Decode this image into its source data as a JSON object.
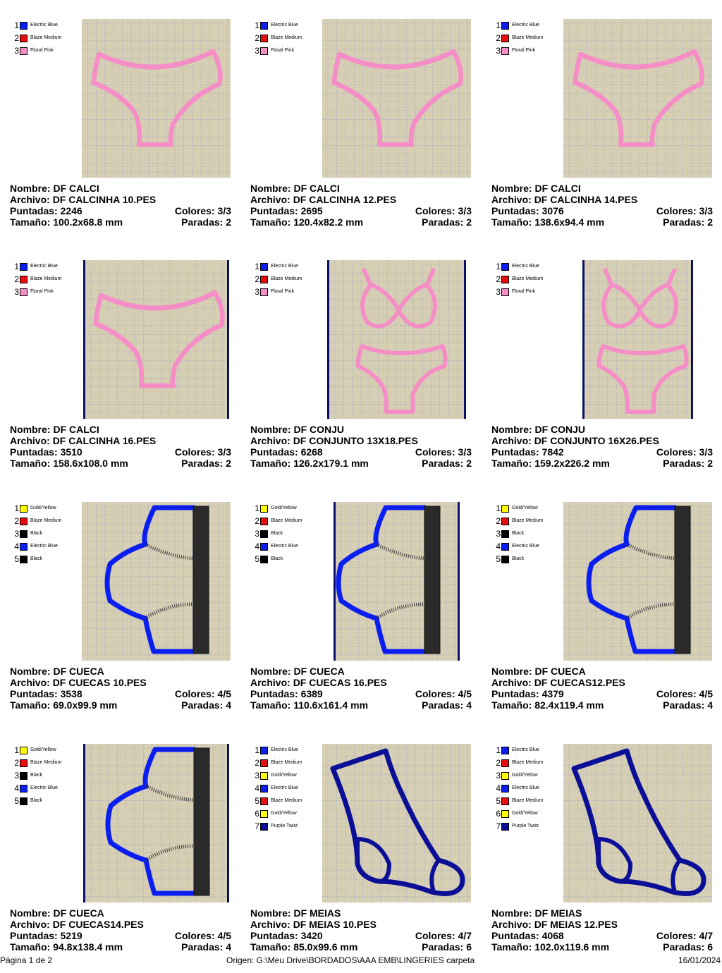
{
  "palette": {
    "Electric Blue": "#0a1ef0",
    "Blaze Medium": "#e50d0d",
    "Floral Pink": "#f58ec6",
    "Gold/Yellow": "#ffff00",
    "Black": "#000000",
    "Purple Twist": "#0a0f96"
  },
  "designs": [
    {
      "nombre_label": "Nombre:",
      "nombre": "DF CALCI",
      "archivo_label": "Archivo:",
      "archivo": "DF CALCINHA 10.PES",
      "puntadas_label": "Puntadas:",
      "puntadas": "2246",
      "colores_label": "Colores:",
      "colores": "3/3",
      "tamano_label": "Tamaño:",
      "tamano": "100.2x68.8 mm",
      "paradas_label": "Paradas:",
      "paradas": "2",
      "shape": "panty",
      "legend": [
        {
          "num": "1",
          "name": "Electric Blue",
          "color": "#0a1ef0"
        },
        {
          "num": "2",
          "name": "Blaze Medium",
          "color": "#e50d0d"
        },
        {
          "num": "3",
          "name": "Floral Pink",
          "color": "#f58ec6"
        }
      ]
    },
    {
      "nombre_label": "Nombre:",
      "nombre": "DF CALCI",
      "archivo_label": "Archivo:",
      "archivo": "DF CALCINHA 12.PES",
      "puntadas_label": "Puntadas:",
      "puntadas": "2695",
      "colores_label": "Colores:",
      "colores": "3/3",
      "tamano_label": "Tamaño:",
      "tamano": "120.4x82.2 mm",
      "paradas_label": "Paradas:",
      "paradas": "2",
      "shape": "panty",
      "legend": [
        {
          "num": "1",
          "name": "Electric Blue",
          "color": "#0a1ef0"
        },
        {
          "num": "2",
          "name": "Blaze Medium",
          "color": "#e50d0d"
        },
        {
          "num": "3",
          "name": "Floral Pink",
          "color": "#f58ec6"
        }
      ]
    },
    {
      "nombre_label": "Nombre:",
      "nombre": "DF CALCI",
      "archivo_label": "Archivo:",
      "archivo": "DF CALCINHA 14.PES",
      "puntadas_label": "Puntadas:",
      "puntadas": "3076",
      "colores_label": "Colores:",
      "colores": "3/3",
      "tamano_label": "Tamaño:",
      "tamano": "138.6x94.4 mm",
      "paradas_label": "Paradas:",
      "paradas": "2",
      "shape": "panty",
      "legend": [
        {
          "num": "1",
          "name": "Electric Blue",
          "color": "#0a1ef0"
        },
        {
          "num": "2",
          "name": "Blaze Medium",
          "color": "#e50d0d"
        },
        {
          "num": "3",
          "name": "Floral Pink",
          "color": "#f58ec6"
        }
      ]
    },
    {
      "nombre_label": "Nombre:",
      "nombre": "DF CALCI",
      "archivo_label": "Archivo:",
      "archivo": "DF CALCINHA 16.PES",
      "puntadas_label": "Puntadas:",
      "puntadas": "3510",
      "colores_label": "Colores:",
      "colores": "3/3",
      "tamano_label": "Tamaño:",
      "tamano": "158.6x108.0 mm",
      "paradas_label": "Paradas:",
      "paradas": "2",
      "shape": "panty",
      "legend": [
        {
          "num": "1",
          "name": "Electric Blue",
          "color": "#0a1ef0"
        },
        {
          "num": "2",
          "name": "Blaze Medium",
          "color": "#e50d0d"
        },
        {
          "num": "3",
          "name": "Floral Pink",
          "color": "#f58ec6"
        }
      ]
    },
    {
      "nombre_label": "Nombre:",
      "nombre": "DF CONJU",
      "archivo_label": "Archivo:",
      "archivo": "DF CONJUNTO 13X18.PES",
      "puntadas_label": "Puntadas:",
      "puntadas": "6268",
      "colores_label": "Colores:",
      "colores": "3/3",
      "tamano_label": "Tamaño:",
      "tamano": "126.2x179.1 mm",
      "paradas_label": "Paradas:",
      "paradas": "2",
      "shape": "set",
      "legend": [
        {
          "num": "1",
          "name": "Electric Blue",
          "color": "#0a1ef0"
        },
        {
          "num": "2",
          "name": "Blaze Medium",
          "color": "#e50d0d"
        },
        {
          "num": "3",
          "name": "Floral Pink",
          "color": "#f58ec6"
        }
      ]
    },
    {
      "nombre_label": "Nombre:",
      "nombre": "DF CONJU",
      "archivo_label": "Archivo:",
      "archivo": "DF CONJUNTO 16X26.PES",
      "puntadas_label": "Puntadas:",
      "puntadas": "7842",
      "colores_label": "Colores:",
      "colores": "3/3",
      "tamano_label": "Tamaño:",
      "tamano": "159.2x226.2 mm",
      "paradas_label": "Paradas:",
      "paradas": "2",
      "shape": "set",
      "legend": [
        {
          "num": "1",
          "name": "Electric Blue",
          "color": "#0a1ef0"
        },
        {
          "num": "2",
          "name": "Blaze Medium",
          "color": "#e50d0d"
        },
        {
          "num": "3",
          "name": "Floral Pink",
          "color": "#f58ec6"
        }
      ]
    },
    {
      "nombre_label": "Nombre:",
      "nombre": "DF CUECA",
      "archivo_label": "Archivo:",
      "archivo": "DF CUECAS 10.PES",
      "puntadas_label": "Puntadas:",
      "puntadas": "3538",
      "colores_label": "Colores:",
      "colores": "4/5",
      "tamano_label": "Tamaño:",
      "tamano": "69.0x99.9 mm",
      "paradas_label": "Paradas:",
      "paradas": "4",
      "shape": "briefs",
      "legend": [
        {
          "num": "1",
          "name": "Gold/Yellow",
          "color": "#ffff00"
        },
        {
          "num": "2",
          "name": "Blaze Medium",
          "color": "#e50d0d"
        },
        {
          "num": "3",
          "name": "Black",
          "color": "#000000"
        },
        {
          "num": "4",
          "name": "Electric Blue",
          "color": "#0a1ef0"
        },
        {
          "num": "5",
          "name": "Black",
          "color": "#000000"
        }
      ]
    },
    {
      "nombre_label": "Nombre:",
      "nombre": "DF CUECA",
      "archivo_label": "Archivo:",
      "archivo": "DF CUECAS 16.PES",
      "puntadas_label": "Puntadas:",
      "puntadas": "6389",
      "colores_label": "Colores:",
      "colores": "4/5",
      "tamano_label": "Tamaño:",
      "tamano": "110.6x161.4 mm",
      "paradas_label": "Paradas:",
      "paradas": "4",
      "shape": "briefs",
      "legend": [
        {
          "num": "1",
          "name": "Gold/Yellow",
          "color": "#ffff00"
        },
        {
          "num": "2",
          "name": "Blaze Medium",
          "color": "#e50d0d"
        },
        {
          "num": "3",
          "name": "Black",
          "color": "#000000"
        },
        {
          "num": "4",
          "name": "Electric Blue",
          "color": "#0a1ef0"
        },
        {
          "num": "5",
          "name": "Black",
          "color": "#000000"
        }
      ]
    },
    {
      "nombre_label": "Nombre:",
      "nombre": "DF CUECA",
      "archivo_label": "Archivo:",
      "archivo": "DF CUECAS12.PES",
      "puntadas_label": "Puntadas:",
      "puntadas": "4379",
      "colores_label": "Colores:",
      "colores": "4/5",
      "tamano_label": "Tamaño:",
      "tamano": "82.4x119.4 mm",
      "paradas_label": "Paradas:",
      "paradas": "4",
      "shape": "briefs",
      "legend": [
        {
          "num": "1",
          "name": "Gold/Yellow",
          "color": "#ffff00"
        },
        {
          "num": "2",
          "name": "Blaze Medium",
          "color": "#e50d0d"
        },
        {
          "num": "3",
          "name": "Black",
          "color": "#000000"
        },
        {
          "num": "4",
          "name": "Electric Blue",
          "color": "#0a1ef0"
        },
        {
          "num": "5",
          "name": "Black",
          "color": "#000000"
        }
      ]
    },
    {
      "nombre_label": "Nombre:",
      "nombre": "DF CUECA",
      "archivo_label": "Archivo:",
      "archivo": "DF CUECAS14.PES",
      "puntadas_label": "Puntadas:",
      "puntadas": "5219",
      "colores_label": "Colores:",
      "colores": "4/5",
      "tamano_label": "Tamaño:",
      "tamano": "94.8x138.4 mm",
      "paradas_label": "Paradas:",
      "paradas": "4",
      "shape": "briefs",
      "legend": [
        {
          "num": "1",
          "name": "Gold/Yellow",
          "color": "#ffff00"
        },
        {
          "num": "2",
          "name": "Blaze Medium",
          "color": "#e50d0d"
        },
        {
          "num": "3",
          "name": "Black",
          "color": "#000000"
        },
        {
          "num": "4",
          "name": "Electric Blue",
          "color": "#0a1ef0"
        },
        {
          "num": "5",
          "name": "Black",
          "color": "#000000"
        }
      ]
    },
    {
      "nombre_label": "Nombre:",
      "nombre": "DF MEIAS",
      "archivo_label": "Archivo:",
      "archivo": "DF MEIAS 10.PES",
      "puntadas_label": "Puntadas:",
      "puntadas": "3420",
      "colores_label": "Colores:",
      "colores": "4/7",
      "tamano_label": "Tamaño:",
      "tamano": "85.0x99.6 mm",
      "paradas_label": "Paradas:",
      "paradas": "6",
      "shape": "sock",
      "legend": [
        {
          "num": "1",
          "name": "Electric Blue",
          "color": "#0a1ef0"
        },
        {
          "num": "2",
          "name": "Blaze Medium",
          "color": "#e50d0d"
        },
        {
          "num": "3",
          "name": "Gold/Yellow",
          "color": "#ffff00"
        },
        {
          "num": "4",
          "name": "Electric Blue",
          "color": "#0a1ef0"
        },
        {
          "num": "5",
          "name": "Blaze Medium",
          "color": "#e50d0d"
        },
        {
          "num": "6",
          "name": "Gold/Yellow",
          "color": "#ffff00"
        },
        {
          "num": "7",
          "name": "Purple Twist",
          "color": "#0a0f96"
        }
      ]
    },
    {
      "nombre_label": "Nombre:",
      "nombre": "DF MEIAS",
      "archivo_label": "Archivo:",
      "archivo": "DF MEIAS 12.PES",
      "puntadas_label": "Puntadas:",
      "puntadas": "4068",
      "colores_label": "Colores:",
      "colores": "4/7",
      "tamano_label": "Tamaño:",
      "tamano": "102.0x119.6 mm",
      "paradas_label": "Paradas:",
      "paradas": "6",
      "shape": "sock",
      "legend": [
        {
          "num": "1",
          "name": "Electric Blue",
          "color": "#0a1ef0"
        },
        {
          "num": "2",
          "name": "Blaze Medium",
          "color": "#e50d0d"
        },
        {
          "num": "3",
          "name": "Gold/Yellow",
          "color": "#ffff00"
        },
        {
          "num": "4",
          "name": "Electric Blue",
          "color": "#0a1ef0"
        },
        {
          "num": "5",
          "name": "Blaze Medium",
          "color": "#e50d0d"
        },
        {
          "num": "6",
          "name": "Gold/Yellow",
          "color": "#ffff00"
        },
        {
          "num": "7",
          "name": "Purple Twist",
          "color": "#0a0f96"
        }
      ]
    }
  ],
  "footer": {
    "page": "Página 1 de 2",
    "origin": "Origen: G:\\Meu Drive\\BORDADOS\\AAA EMB\\LINGERIES carpeta",
    "date": "16/01/2024"
  }
}
